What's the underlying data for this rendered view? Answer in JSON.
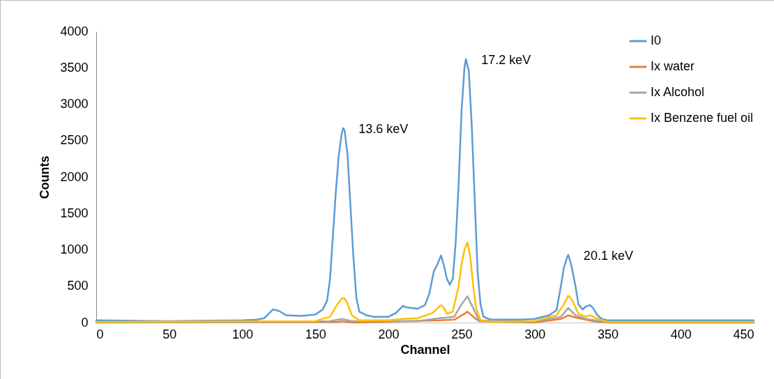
{
  "chart_data": {
    "type": "line",
    "xlabel": "Channel",
    "ylabel": "Counts",
    "xlim": [
      0,
      450
    ],
    "xticks": [
      0,
      50,
      100,
      150,
      200,
      250,
      300,
      350,
      400,
      450
    ],
    "ylim": [
      0,
      4000
    ],
    "yticks": [
      0,
      500,
      1000,
      1500,
      2000,
      2500,
      3000,
      3500,
      4000
    ],
    "grid": false,
    "legend": "top right",
    "marker": "none",
    "line_style": "solid",
    "annotations": [
      {
        "text": "13.6 keV",
        "x": 169,
        "y": 2670
      },
      {
        "text": "17.2 keV",
        "x": 253,
        "y": 3620
      },
      {
        "text": "20.1 keV",
        "x": 323,
        "y": 930
      }
    ],
    "series": [
      {
        "name": "I0",
        "color": "#5b9bd5",
        "x": [
          0,
          50,
          100,
          110,
          115,
          121,
          125,
          130,
          140,
          150,
          155,
          158,
          160,
          162,
          164,
          166,
          168,
          169,
          170,
          172,
          174,
          176,
          178,
          180,
          185,
          190,
          200,
          205,
          210,
          212,
          220,
          225,
          228,
          231,
          233,
          236,
          238,
          240,
          242,
          244,
          246,
          248,
          250,
          252,
          253,
          255,
          257,
          259,
          261,
          263,
          265,
          270,
          280,
          290,
          300,
          310,
          315,
          318,
          320,
          322,
          323,
          325,
          328,
          330,
          333,
          335,
          338,
          340,
          343,
          346,
          350,
          400,
          450
        ],
        "values": [
          30,
          20,
          30,
          40,
          60,
          180,
          160,
          100,
          90,
          110,
          180,
          300,
          600,
          1200,
          1800,
          2300,
          2600,
          2670,
          2640,
          2300,
          1600,
          900,
          350,
          150,
          100,
          80,
          80,
          130,
          230,
          210,
          190,
          240,
          400,
          700,
          780,
          920,
          780,
          600,
          520,
          600,
          1100,
          1900,
          2900,
          3500,
          3620,
          3450,
          2700,
          1700,
          700,
          250,
          80,
          40,
          40,
          40,
          50,
          100,
          170,
          500,
          750,
          880,
          930,
          800,
          500,
          250,
          180,
          220,
          240,
          200,
          100,
          50,
          30,
          30,
          30
        ]
      },
      {
        "name": "Ix water",
        "color": "#ed7d31",
        "x": [
          0,
          165,
          168,
          175,
          235,
          245,
          252,
          254,
          258,
          262,
          300,
          318,
          323,
          328,
          340,
          350,
          450
        ],
        "values": [
          0,
          10,
          20,
          0,
          30,
          40,
          120,
          150,
          80,
          20,
          0,
          50,
          100,
          70,
          20,
          0,
          0
        ]
      },
      {
        "name": "Ix Alcohol",
        "color": "#a5a5a5",
        "x": [
          0,
          160,
          168,
          175,
          220,
          235,
          245,
          250,
          254,
          258,
          262,
          300,
          318,
          323,
          328,
          335,
          345,
          350,
          450
        ],
        "values": [
          0,
          20,
          50,
          20,
          20,
          60,
          80,
          250,
          360,
          200,
          30,
          10,
          80,
          200,
          100,
          50,
          20,
          0,
          0
        ]
      },
      {
        "name": "Ix Benzene fuel oil",
        "color": "#ffc000",
        "x": [
          0,
          150,
          160,
          165,
          168,
          170,
          172,
          175,
          180,
          200,
          210,
          220,
          230,
          236,
          238,
          240,
          244,
          248,
          250,
          252,
          254,
          256,
          258,
          260,
          263,
          270,
          300,
          315,
          320,
          323,
          326,
          330,
          335,
          338,
          342,
          350,
          450
        ],
        "values": [
          10,
          20,
          80,
          250,
          330,
          330,
          260,
          100,
          30,
          30,
          50,
          60,
          130,
          240,
          200,
          120,
          150,
          500,
          800,
          1000,
          1100,
          900,
          500,
          200,
          30,
          10,
          20,
          100,
          250,
          370,
          300,
          120,
          80,
          100,
          60,
          10,
          10
        ]
      }
    ]
  }
}
